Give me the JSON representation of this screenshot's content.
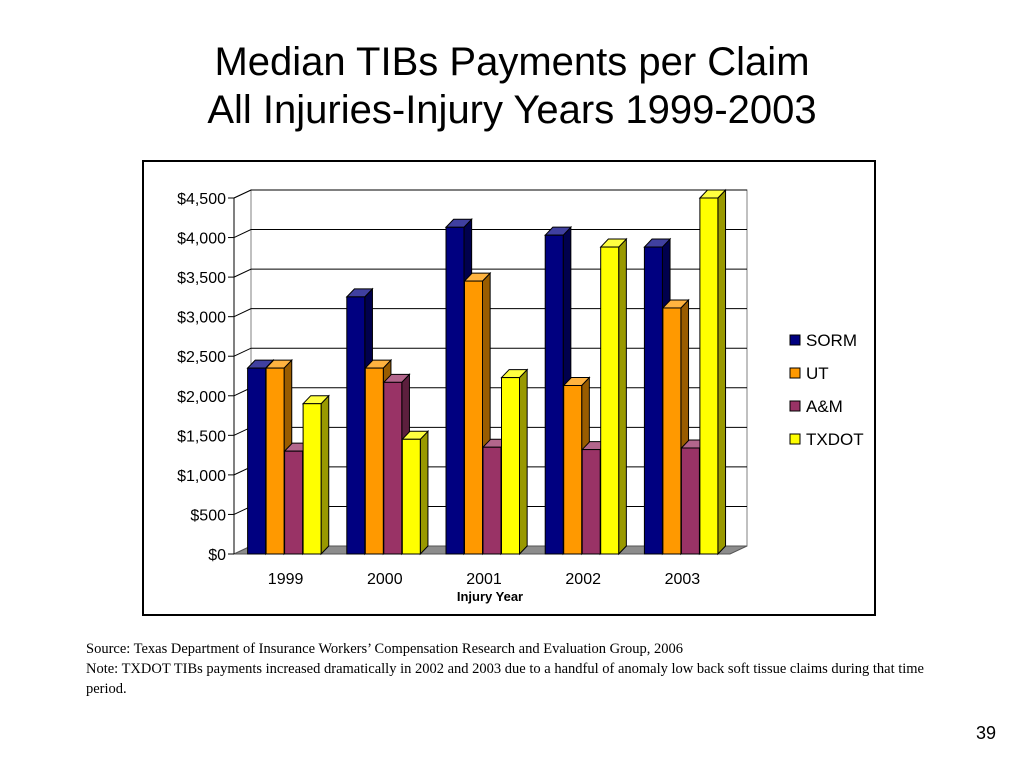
{
  "slide": {
    "title_line1": "Median TIBs Payments per Claim",
    "title_line2": "All Injuries-Injury Years 1999-2003",
    "source": "Source: Texas Department of Insurance Workers’ Compensation Research and Evaluation Group, 2006",
    "note": "Note: TXDOT TIBs payments increased dramatically in 2002 and 2003 due to a handful of anomaly low back soft tissue claims during that time period.",
    "page_number": "39"
  },
  "chart_data": {
    "type": "bar",
    "style": "3d-clustered-column",
    "title": "",
    "xlabel": "Injury Year",
    "ylabel": "",
    "categories": [
      "1999",
      "2000",
      "2001",
      "2002",
      "2003"
    ],
    "ylim": [
      0,
      4500
    ],
    "yticks": [
      0,
      500,
      1000,
      1500,
      2000,
      2500,
      3000,
      3500,
      4000,
      4500
    ],
    "ytick_labels": [
      "$0",
      "$500",
      "$1,000",
      "$1,500",
      "$2,000",
      "$2,500",
      "$3,000",
      "$3,500",
      "$4,000",
      "$4,500"
    ],
    "grid": true,
    "legend_position": "right",
    "series": [
      {
        "name": "SORM",
        "color": "#000080",
        "values": [
          2350,
          3250,
          4130,
          4030,
          3880
        ]
      },
      {
        "name": "UT",
        "color": "#FF9900",
        "values": [
          2350,
          2350,
          3450,
          2130,
          3110
        ]
      },
      {
        "name": "A&M",
        "color": "#993366",
        "values": [
          1300,
          2170,
          1350,
          1320,
          1340
        ]
      },
      {
        "name": "TXDOT",
        "color": "#FFFF00",
        "values": [
          1900,
          1450,
          2230,
          3880,
          4500
        ]
      }
    ]
  }
}
